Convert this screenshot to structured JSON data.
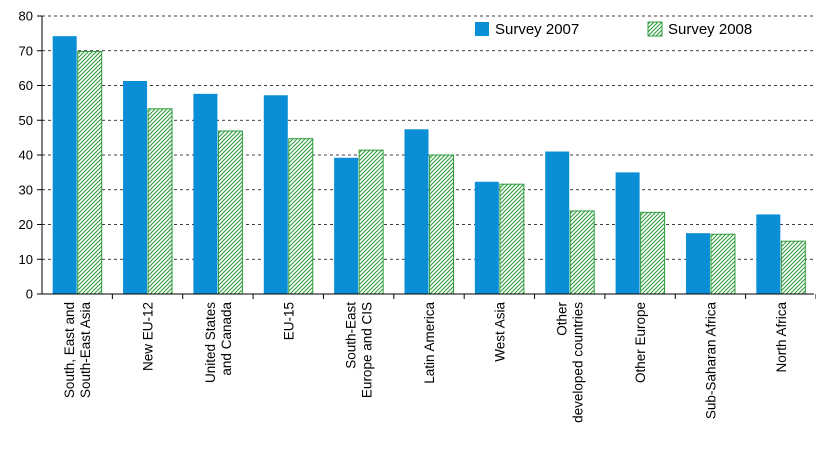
{
  "chart_data": {
    "type": "bar",
    "title": "",
    "xlabel": "",
    "ylabel": "",
    "ylim": [
      0,
      80
    ],
    "yticks": [
      0,
      10,
      20,
      30,
      40,
      50,
      60,
      70,
      80
    ],
    "grid": "horizontal dashed at major ticks",
    "legend_position": "top-right",
    "categories": [
      [
        "South, East and",
        "South-East Asia"
      ],
      [
        "New EU-12"
      ],
      [
        "United States",
        "and Canada"
      ],
      [
        "EU-15"
      ],
      [
        "South-East",
        "Europe and CIS"
      ],
      [
        "Latin America"
      ],
      [
        "West Asia"
      ],
      [
        "Other",
        "developed countries"
      ],
      [
        "Other Europe"
      ],
      [
        "Sub-Saharan Africa"
      ],
      [
        "North Africa"
      ]
    ],
    "series": [
      {
        "name": "Survey 2007",
        "color": "#0a8fd6",
        "style": "solid",
        "values": [
          74.2,
          61.3,
          57.6,
          57.2,
          39.2,
          47.4,
          32.3,
          41.0,
          35.0,
          17.5,
          22.9
        ]
      },
      {
        "name": "Survey 2008",
        "color": "#2e9c3c",
        "style": "hatched",
        "values": [
          69.8,
          53.3,
          46.9,
          44.7,
          41.4,
          40.0,
          31.6,
          23.9,
          23.5,
          17.2,
          15.2
        ]
      }
    ]
  }
}
